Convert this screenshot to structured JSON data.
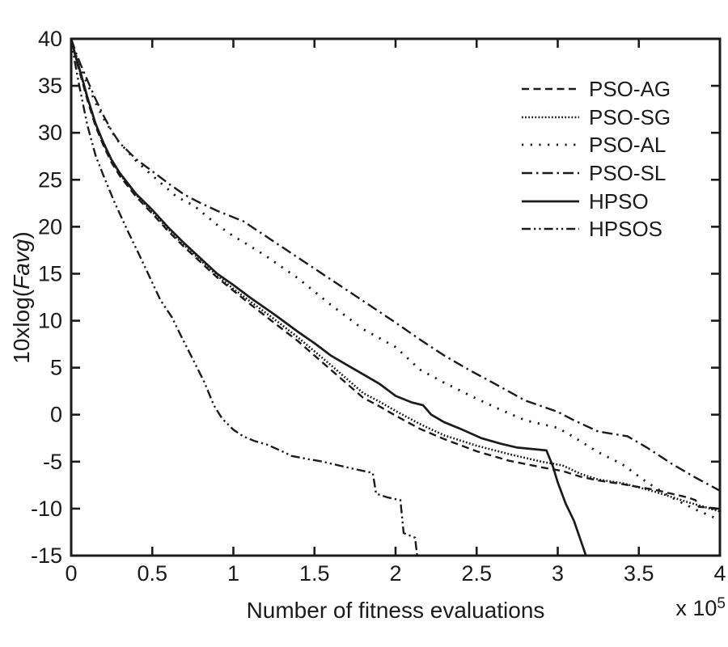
{
  "figure": {
    "xlabel": "Number of fitness evaluations",
    "ylabel_prefix": "10xlog(",
    "ylabel_italic": "Favg",
    "ylabel_suffix": ")",
    "offset_base": "x 10",
    "offset_exp": "5",
    "ink_color": "#1b1b1b",
    "background_color": "#ffffff"
  },
  "chart_data": {
    "type": "line",
    "title": "",
    "xlabel": "Number of fitness evaluations",
    "ylabel": "10xlog(Favg)",
    "x_multiplier_label": "x 10^5",
    "xlim": [
      0,
      4
    ],
    "ylim": [
      -15,
      40
    ],
    "grid": false,
    "legend_position": "upper-right, no box",
    "x_tick_values": [
      0,
      0.5,
      1,
      1.5,
      2,
      2.5,
      3,
      3.5,
      4
    ],
    "x_tick_labels": [
      "0",
      "0.5",
      "1",
      "1.5",
      "2",
      "2.5",
      "3",
      "3.5",
      "4"
    ],
    "y_tick_values": [
      40,
      35,
      30,
      25,
      20,
      15,
      10,
      5,
      0,
      -5,
      -10,
      -15
    ],
    "y_tick_labels": [
      "40",
      "35",
      "30",
      "25",
      "20",
      "15",
      "10",
      "5",
      "0",
      "-5",
      "-10",
      "-15"
    ],
    "series": [
      {
        "name": "PSO-AG",
        "line_style": "dashed",
        "dash": "9 5.5",
        "width": 2.4,
        "points": [
          [
            0,
            40
          ],
          [
            0.03,
            37.8
          ],
          [
            0.06,
            36
          ],
          [
            0.1,
            33.5
          ],
          [
            0.15,
            30.7
          ],
          [
            0.2,
            28.6
          ],
          [
            0.25,
            26.8
          ],
          [
            0.3,
            25.4
          ],
          [
            0.4,
            23.2
          ],
          [
            0.5,
            21.4
          ],
          [
            0.6,
            19.5
          ],
          [
            0.7,
            17.8
          ],
          [
            0.8,
            16.2
          ],
          [
            0.9,
            14.6
          ],
          [
            1.0,
            13.2
          ],
          [
            1.1,
            11.8
          ],
          [
            1.25,
            9.8
          ],
          [
            1.4,
            7.8
          ],
          [
            1.6,
            4.8
          ],
          [
            1.8,
            1.8
          ],
          [
            1.9,
            0.9
          ],
          [
            2.0,
            -0.1
          ],
          [
            2.15,
            -1.5
          ],
          [
            2.3,
            -2.6
          ],
          [
            2.5,
            -3.9
          ],
          [
            2.7,
            -4.9
          ],
          [
            2.9,
            -5.6
          ],
          [
            3.03,
            -6.0
          ],
          [
            3.14,
            -6.6
          ],
          [
            3.25,
            -7.0
          ],
          [
            3.4,
            -7.4
          ],
          [
            3.6,
            -8.0
          ],
          [
            3.8,
            -8.8
          ],
          [
            3.85,
            -9.1
          ],
          [
            3.87,
            -9.8
          ],
          [
            4.0,
            -10.0
          ]
        ]
      },
      {
        "name": "PSO-SG",
        "line_style": "dense-dotted",
        "dash": "1.8 2.3",
        "width": 2.6,
        "points": [
          [
            0,
            40
          ],
          [
            0.03,
            37.9
          ],
          [
            0.06,
            36.2
          ],
          [
            0.1,
            33.7
          ],
          [
            0.15,
            30.9
          ],
          [
            0.2,
            28.8
          ],
          [
            0.25,
            27.0
          ],
          [
            0.3,
            25.6
          ],
          [
            0.4,
            23.4
          ],
          [
            0.5,
            21.6
          ],
          [
            0.6,
            19.7
          ],
          [
            0.7,
            18.0
          ],
          [
            0.8,
            16.4
          ],
          [
            0.9,
            14.8
          ],
          [
            1.0,
            13.4
          ],
          [
            1.1,
            12.1
          ],
          [
            1.25,
            10.2
          ],
          [
            1.4,
            8.2
          ],
          [
            1.6,
            5.3
          ],
          [
            1.8,
            2.3
          ],
          [
            1.9,
            1.4
          ],
          [
            2.0,
            0.4
          ],
          [
            2.15,
            -1.0
          ],
          [
            2.3,
            -2.2
          ],
          [
            2.5,
            -3.3
          ],
          [
            2.7,
            -4.2
          ],
          [
            2.9,
            -5.0
          ],
          [
            3.03,
            -5.4
          ],
          [
            3.14,
            -6.3
          ],
          [
            3.25,
            -6.9
          ],
          [
            3.4,
            -7.3
          ],
          [
            3.6,
            -8.2
          ],
          [
            3.8,
            -9.3
          ],
          [
            4.0,
            -10.3
          ]
        ]
      },
      {
        "name": "PSO-AL",
        "line_style": "dotted",
        "dash": "2.2 8.5",
        "width": 2.8,
        "points": [
          [
            0,
            40
          ],
          [
            0.03,
            38.2
          ],
          [
            0.06,
            36.8
          ],
          [
            0.1,
            35.2
          ],
          [
            0.15,
            33.2
          ],
          [
            0.2,
            31.5
          ],
          [
            0.28,
            29.3
          ],
          [
            0.4,
            27.0
          ],
          [
            0.53,
            25.0
          ],
          [
            0.65,
            23.2
          ],
          [
            0.76,
            22.2
          ],
          [
            0.9,
            20.2
          ],
          [
            1.0,
            19.0
          ],
          [
            1.06,
            18.4
          ],
          [
            1.2,
            16.9
          ],
          [
            1.4,
            14.5
          ],
          [
            1.6,
            11.7
          ],
          [
            1.8,
            9.1
          ],
          [
            2.0,
            7.2
          ],
          [
            2.15,
            4.8
          ],
          [
            2.3,
            3.4
          ],
          [
            2.5,
            1.7
          ],
          [
            2.65,
            0.5
          ],
          [
            2.8,
            -0.6
          ],
          [
            3.0,
            -1.4
          ],
          [
            3.1,
            -2.4
          ],
          [
            3.25,
            -4.0
          ],
          [
            3.4,
            -5.3
          ],
          [
            3.55,
            -7.2
          ],
          [
            3.7,
            -8.8
          ],
          [
            3.85,
            -10.1
          ],
          [
            4.0,
            -11.2
          ]
        ]
      },
      {
        "name": "PSO-SL",
        "line_style": "dash-dot",
        "dash": "13 5 2.5 5",
        "width": 2.4,
        "points": [
          [
            0,
            40
          ],
          [
            0.03,
            38.5
          ],
          [
            0.06,
            37.2
          ],
          [
            0.1,
            35.6
          ],
          [
            0.15,
            33.6
          ],
          [
            0.2,
            31.8
          ],
          [
            0.25,
            30.2
          ],
          [
            0.3,
            28.9
          ],
          [
            0.4,
            27.2
          ],
          [
            0.5,
            25.9
          ],
          [
            0.6,
            24.6
          ],
          [
            0.7,
            23.4
          ],
          [
            0.8,
            22.5
          ],
          [
            0.9,
            21.7
          ],
          [
            1.0,
            21.0
          ],
          [
            1.06,
            20.6
          ],
          [
            1.2,
            19.0
          ],
          [
            1.4,
            16.7
          ],
          [
            1.6,
            14.4
          ],
          [
            1.8,
            12.1
          ],
          [
            2.0,
            9.8
          ],
          [
            2.15,
            8.0
          ],
          [
            2.3,
            6.3
          ],
          [
            2.45,
            4.8
          ],
          [
            2.6,
            3.4
          ],
          [
            2.8,
            1.5
          ],
          [
            3.0,
            0.3
          ],
          [
            3.1,
            -0.6
          ],
          [
            3.25,
            -1.8
          ],
          [
            3.43,
            -2.3
          ],
          [
            3.55,
            -3.5
          ],
          [
            3.7,
            -5.2
          ],
          [
            3.85,
            -6.7
          ],
          [
            4.0,
            -8.1
          ]
        ]
      },
      {
        "name": "HPSO",
        "line_style": "solid",
        "dash": "",
        "width": 2.7,
        "points": [
          [
            0,
            40
          ],
          [
            0.03,
            38
          ],
          [
            0.06,
            36.3
          ],
          [
            0.1,
            33.8
          ],
          [
            0.15,
            31.0
          ],
          [
            0.2,
            28.9
          ],
          [
            0.25,
            27.1
          ],
          [
            0.3,
            25.7
          ],
          [
            0.4,
            23.5
          ],
          [
            0.5,
            21.8
          ],
          [
            0.6,
            19.9
          ],
          [
            0.7,
            18.2
          ],
          [
            0.8,
            16.6
          ],
          [
            0.9,
            15.0
          ],
          [
            1.0,
            13.8
          ],
          [
            1.1,
            12.5
          ],
          [
            1.25,
            10.7
          ],
          [
            1.4,
            8.8
          ],
          [
            1.5,
            7.6
          ],
          [
            1.6,
            6.3
          ],
          [
            1.7,
            5.3
          ],
          [
            1.8,
            4.3
          ],
          [
            1.9,
            3.3
          ],
          [
            2.0,
            2.0
          ],
          [
            2.1,
            1.3
          ],
          [
            2.17,
            1.0
          ],
          [
            2.22,
            0.0
          ],
          [
            2.3,
            -0.8
          ],
          [
            2.4,
            -1.5
          ],
          [
            2.53,
            -2.5
          ],
          [
            2.65,
            -3.1
          ],
          [
            2.75,
            -3.5
          ],
          [
            2.93,
            -3.8
          ],
          [
            2.97,
            -5.5
          ],
          [
            3.0,
            -7.2
          ],
          [
            3.05,
            -9.5
          ],
          [
            3.1,
            -11.3
          ],
          [
            3.17,
            -14.8
          ],
          [
            3.19,
            -16.5
          ]
        ]
      },
      {
        "name": "HPSOS",
        "line_style": "dash-dot-dot",
        "dash": "11 4 2.3 4 2.3 4",
        "width": 2.4,
        "points": [
          [
            0,
            40
          ],
          [
            0.02,
            37.8
          ],
          [
            0.05,
            35.0
          ],
          [
            0.1,
            30.8
          ],
          [
            0.15,
            27.6
          ],
          [
            0.2,
            25.4
          ],
          [
            0.27,
            22.5
          ],
          [
            0.35,
            19.5
          ],
          [
            0.42,
            17.0
          ],
          [
            0.48,
            14.8
          ],
          [
            0.55,
            12.2
          ],
          [
            0.62,
            10.4
          ],
          [
            0.68,
            8.3
          ],
          [
            0.75,
            5.9
          ],
          [
            0.82,
            3.5
          ],
          [
            0.88,
            1.0
          ],
          [
            0.93,
            -0.4
          ],
          [
            1.0,
            -1.6
          ],
          [
            1.06,
            -2.3
          ],
          [
            1.13,
            -2.8
          ],
          [
            1.21,
            -3.2
          ],
          [
            1.3,
            -3.9
          ],
          [
            1.36,
            -4.4
          ],
          [
            1.45,
            -4.7
          ],
          [
            1.55,
            -5.0
          ],
          [
            1.65,
            -5.4
          ],
          [
            1.75,
            -5.8
          ],
          [
            1.86,
            -6.2
          ],
          [
            1.88,
            -8.4
          ],
          [
            1.95,
            -8.8
          ],
          [
            2.03,
            -9.1
          ],
          [
            2.05,
            -12.6
          ],
          [
            2.12,
            -13.1
          ],
          [
            2.14,
            -16
          ]
        ]
      }
    ]
  }
}
